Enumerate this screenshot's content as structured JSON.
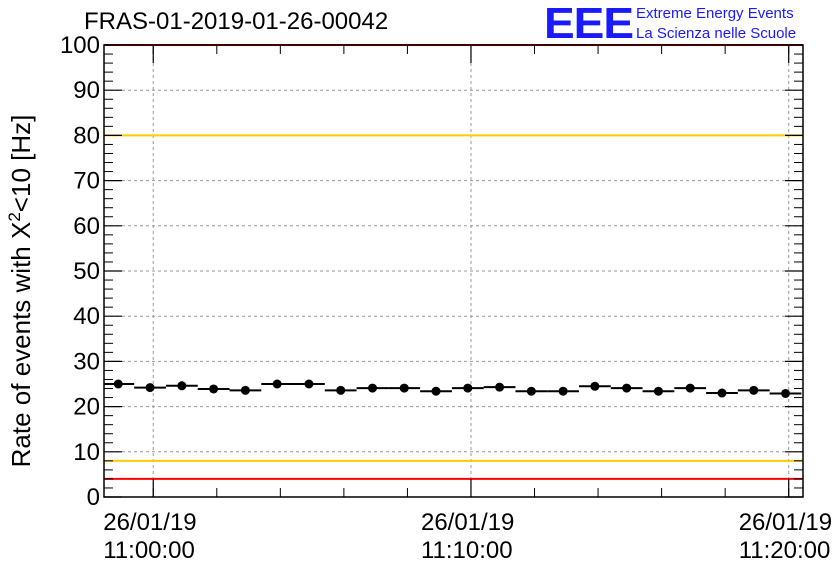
{
  "title": "FRAS-01-2019-01-26-00042",
  "logo": {
    "mark": "EEE",
    "line1": "Extreme Energy Events",
    "line2": "La Scienza nelle Scuole",
    "color": "#1a1aff"
  },
  "colors": {
    "limit_red": "#ff0000",
    "limit_yellow": "#ffcc00",
    "marker": "#000000",
    "grid": "#999999"
  },
  "chart_data": {
    "type": "scatter",
    "title": "FRAS-01-2019-01-26-00042",
    "xlabel": "",
    "ylabel_parts": [
      "Rate of events with X",
      "2",
      "<10 [Hz]"
    ],
    "ylim": [
      0,
      100
    ],
    "yticks": [
      0,
      10,
      20,
      30,
      40,
      50,
      60,
      70,
      80,
      90,
      100
    ],
    "xlim_minutes": [
      -1.55,
      20.45
    ],
    "xticks": [
      {
        "minute": 0,
        "date": "26/01/19",
        "time": "11:00:00"
      },
      {
        "minute": 10,
        "date": "26/01/19",
        "time": "11:10:00"
      },
      {
        "minute": 20,
        "date": "26/01/19",
        "time": "11:20:00"
      }
    ],
    "minor_xtick_step_minutes": 2,
    "grid": true,
    "horizontal_lines": [
      {
        "y": 4,
        "color": "#ff0000"
      },
      {
        "y": 8,
        "color": "#ffcc00"
      },
      {
        "y": 80,
        "color": "#ffcc00"
      },
      {
        "y": 100,
        "color": "#ff0000"
      }
    ],
    "bin_width_minutes": 1.0,
    "x_minutes": [
      -1.1,
      -0.1,
      0.9,
      1.9,
      2.9,
      3.9,
      4.9,
      5.9,
      6.9,
      7.9,
      8.9,
      9.9,
      10.9,
      11.9,
      12.9,
      13.9,
      14.9,
      15.9,
      16.9,
      17.9,
      18.9,
      19.9
    ],
    "values": [
      25.0,
      24.2,
      24.6,
      23.9,
      23.6,
      25.0,
      25.0,
      23.6,
      24.1,
      24.1,
      23.4,
      24.1,
      24.3,
      23.4,
      23.4,
      24.5,
      24.1,
      23.4,
      24.1,
      23.0,
      23.6,
      22.9
    ]
  }
}
